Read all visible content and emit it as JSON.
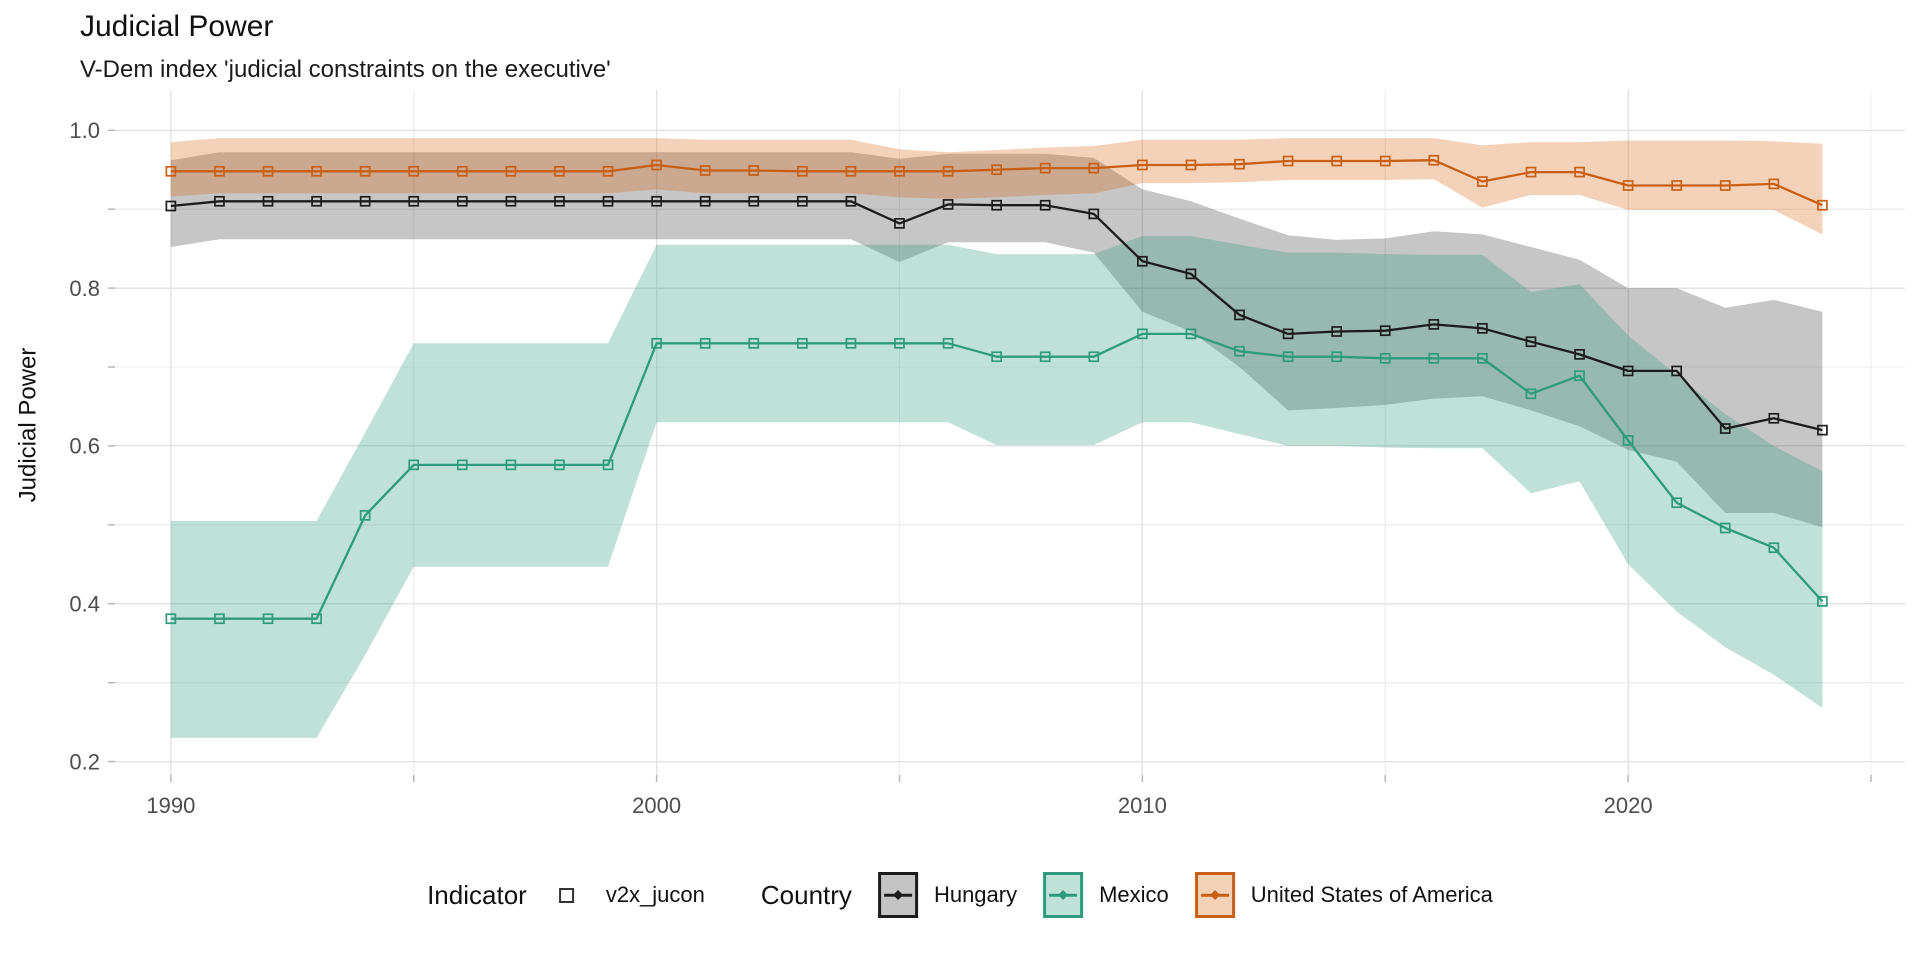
{
  "title": "Judicial Power",
  "subtitle": "V-Dem index 'judicial constraints on the executive'",
  "y_axis_title": "Judicial Power",
  "legend": {
    "indicator_label": "Indicator",
    "indicator_item": "v2x_jucon",
    "indicator_marker": "open-square",
    "country_label": "Country",
    "countries": [
      {
        "name": "Hungary",
        "line_color": "#1C1C1C",
        "key_fill": "#C4C4C4"
      },
      {
        "name": "Mexico",
        "line_color": "#2E9C7C",
        "key_fill": "#C0E1D7"
      },
      {
        "name": "United States of America",
        "line_color": "#C85F14",
        "key_fill": "#F4D2B8"
      }
    ]
  },
  "axis_colors": {
    "tick_label": "#4D4D4D",
    "grid_major": "#E4E4E4",
    "grid_minor": "#EFEFEF",
    "tick_mark": "#B8B8B8"
  },
  "chart_data": {
    "type": "line",
    "title": "Judicial Power",
    "subtitle": "V-Dem index 'judicial constraints on the executive'",
    "xlabel": "",
    "ylabel": "Judicial Power",
    "point_shape": "open-square",
    "grid": true,
    "legend_position": "bottom",
    "xlim": [
      1988.85,
      2025.7
    ],
    "ylim": [
      0.183,
      1.051
    ],
    "x_ticks": [
      1990,
      2000,
      2010,
      2020
    ],
    "x_minor": [
      1995,
      2005,
      2015,
      2025
    ],
    "y_ticks": [
      0.2,
      0.4,
      0.6,
      0.8,
      1.0
    ],
    "y_minor": [
      0.3,
      0.5,
      0.7,
      0.9
    ],
    "x": [
      1990,
      1991,
      1992,
      1993,
      1994,
      1995,
      1996,
      1997,
      1998,
      1999,
      2000,
      2001,
      2002,
      2003,
      2004,
      2005,
      2006,
      2007,
      2008,
      2009,
      2010,
      2011,
      2012,
      2013,
      2014,
      2015,
      2016,
      2017,
      2018,
      2019,
      2020,
      2021,
      2022,
      2023,
      2024
    ],
    "series": [
      {
        "name": "Hungary",
        "indicator": "v2x_jucon",
        "line_color": "#1C1C1C",
        "ribbon_color": "rgba(26,26,26,0.25)",
        "values": [
          0.904,
          0.91,
          0.91,
          0.91,
          0.91,
          0.91,
          0.91,
          0.91,
          0.91,
          0.91,
          0.91,
          0.91,
          0.91,
          0.91,
          0.91,
          0.882,
          0.906,
          0.905,
          0.905,
          0.894,
          0.834,
          0.818,
          0.766,
          0.742,
          0.745,
          0.746,
          0.754,
          0.749,
          0.732,
          0.716,
          0.695,
          0.695,
          0.622,
          0.635,
          0.62
        ],
        "lo": [
          0.852,
          0.862,
          0.862,
          0.862,
          0.862,
          0.862,
          0.862,
          0.862,
          0.862,
          0.862,
          0.862,
          0.862,
          0.862,
          0.862,
          0.862,
          0.833,
          0.858,
          0.858,
          0.858,
          0.845,
          0.77,
          0.745,
          0.7,
          0.645,
          0.648,
          0.652,
          0.66,
          0.663,
          0.645,
          0.625,
          0.595,
          0.58,
          0.515,
          0.515,
          0.497
        ],
        "hi": [
          0.962,
          0.972,
          0.972,
          0.972,
          0.972,
          0.972,
          0.972,
          0.972,
          0.972,
          0.972,
          0.972,
          0.972,
          0.972,
          0.972,
          0.972,
          0.964,
          0.97,
          0.97,
          0.97,
          0.965,
          0.925,
          0.91,
          0.888,
          0.867,
          0.861,
          0.863,
          0.872,
          0.868,
          0.852,
          0.836,
          0.8,
          0.8,
          0.775,
          0.785,
          0.77
        ]
      },
      {
        "name": "Mexico",
        "indicator": "v2x_jucon",
        "line_color": "#2E9C7C",
        "ribbon_color": "rgba(46,156,124,0.30)",
        "values": [
          0.381,
          0.381,
          0.381,
          0.381,
          0.512,
          0.576,
          0.576,
          0.576,
          0.576,
          0.576,
          0.73,
          0.73,
          0.73,
          0.73,
          0.73,
          0.73,
          0.73,
          0.713,
          0.713,
          0.713,
          0.742,
          0.742,
          0.72,
          0.713,
          0.713,
          0.711,
          0.711,
          0.711,
          0.666,
          0.689,
          0.607,
          0.528,
          0.496,
          0.471,
          0.403
        ],
        "lo": [
          0.23,
          0.23,
          0.23,
          0.23,
          0.335,
          0.447,
          0.447,
          0.447,
          0.447,
          0.447,
          0.63,
          0.63,
          0.63,
          0.63,
          0.63,
          0.63,
          0.63,
          0.601,
          0.601,
          0.601,
          0.63,
          0.63,
          0.615,
          0.6,
          0.6,
          0.598,
          0.597,
          0.597,
          0.54,
          0.555,
          0.45,
          0.39,
          0.345,
          0.31,
          0.268
        ],
        "hi": [
          0.505,
          0.505,
          0.505,
          0.505,
          0.617,
          0.73,
          0.73,
          0.73,
          0.73,
          0.73,
          0.855,
          0.855,
          0.855,
          0.855,
          0.855,
          0.855,
          0.855,
          0.843,
          0.843,
          0.843,
          0.866,
          0.866,
          0.855,
          0.845,
          0.845,
          0.843,
          0.842,
          0.842,
          0.795,
          0.805,
          0.74,
          0.69,
          0.64,
          0.6,
          0.568
        ]
      },
      {
        "name": "United States of America",
        "indicator": "v2x_jucon",
        "line_color": "#C85F14",
        "ribbon_color": "rgba(217,95,2,0.28)",
        "values": [
          0.948,
          0.948,
          0.948,
          0.948,
          0.948,
          0.948,
          0.948,
          0.948,
          0.948,
          0.948,
          0.956,
          0.949,
          0.949,
          0.948,
          0.948,
          0.948,
          0.948,
          0.95,
          0.952,
          0.952,
          0.956,
          0.956,
          0.957,
          0.961,
          0.961,
          0.961,
          0.962,
          0.935,
          0.947,
          0.947,
          0.93,
          0.93,
          0.93,
          0.932,
          0.905
        ],
        "lo": [
          0.916,
          0.92,
          0.92,
          0.92,
          0.92,
          0.92,
          0.92,
          0.92,
          0.92,
          0.92,
          0.925,
          0.92,
          0.92,
          0.92,
          0.92,
          0.915,
          0.913,
          0.915,
          0.918,
          0.92,
          0.933,
          0.933,
          0.934,
          0.937,
          0.937,
          0.937,
          0.938,
          0.902,
          0.918,
          0.918,
          0.899,
          0.899,
          0.899,
          0.899,
          0.868
        ],
        "hi": [
          0.985,
          0.99,
          0.99,
          0.99,
          0.99,
          0.99,
          0.99,
          0.99,
          0.99,
          0.99,
          0.99,
          0.988,
          0.988,
          0.988,
          0.988,
          0.976,
          0.972,
          0.975,
          0.978,
          0.98,
          0.988,
          0.988,
          0.988,
          0.99,
          0.99,
          0.99,
          0.99,
          0.981,
          0.985,
          0.985,
          0.987,
          0.987,
          0.987,
          0.986,
          0.983
        ]
      }
    ]
  }
}
